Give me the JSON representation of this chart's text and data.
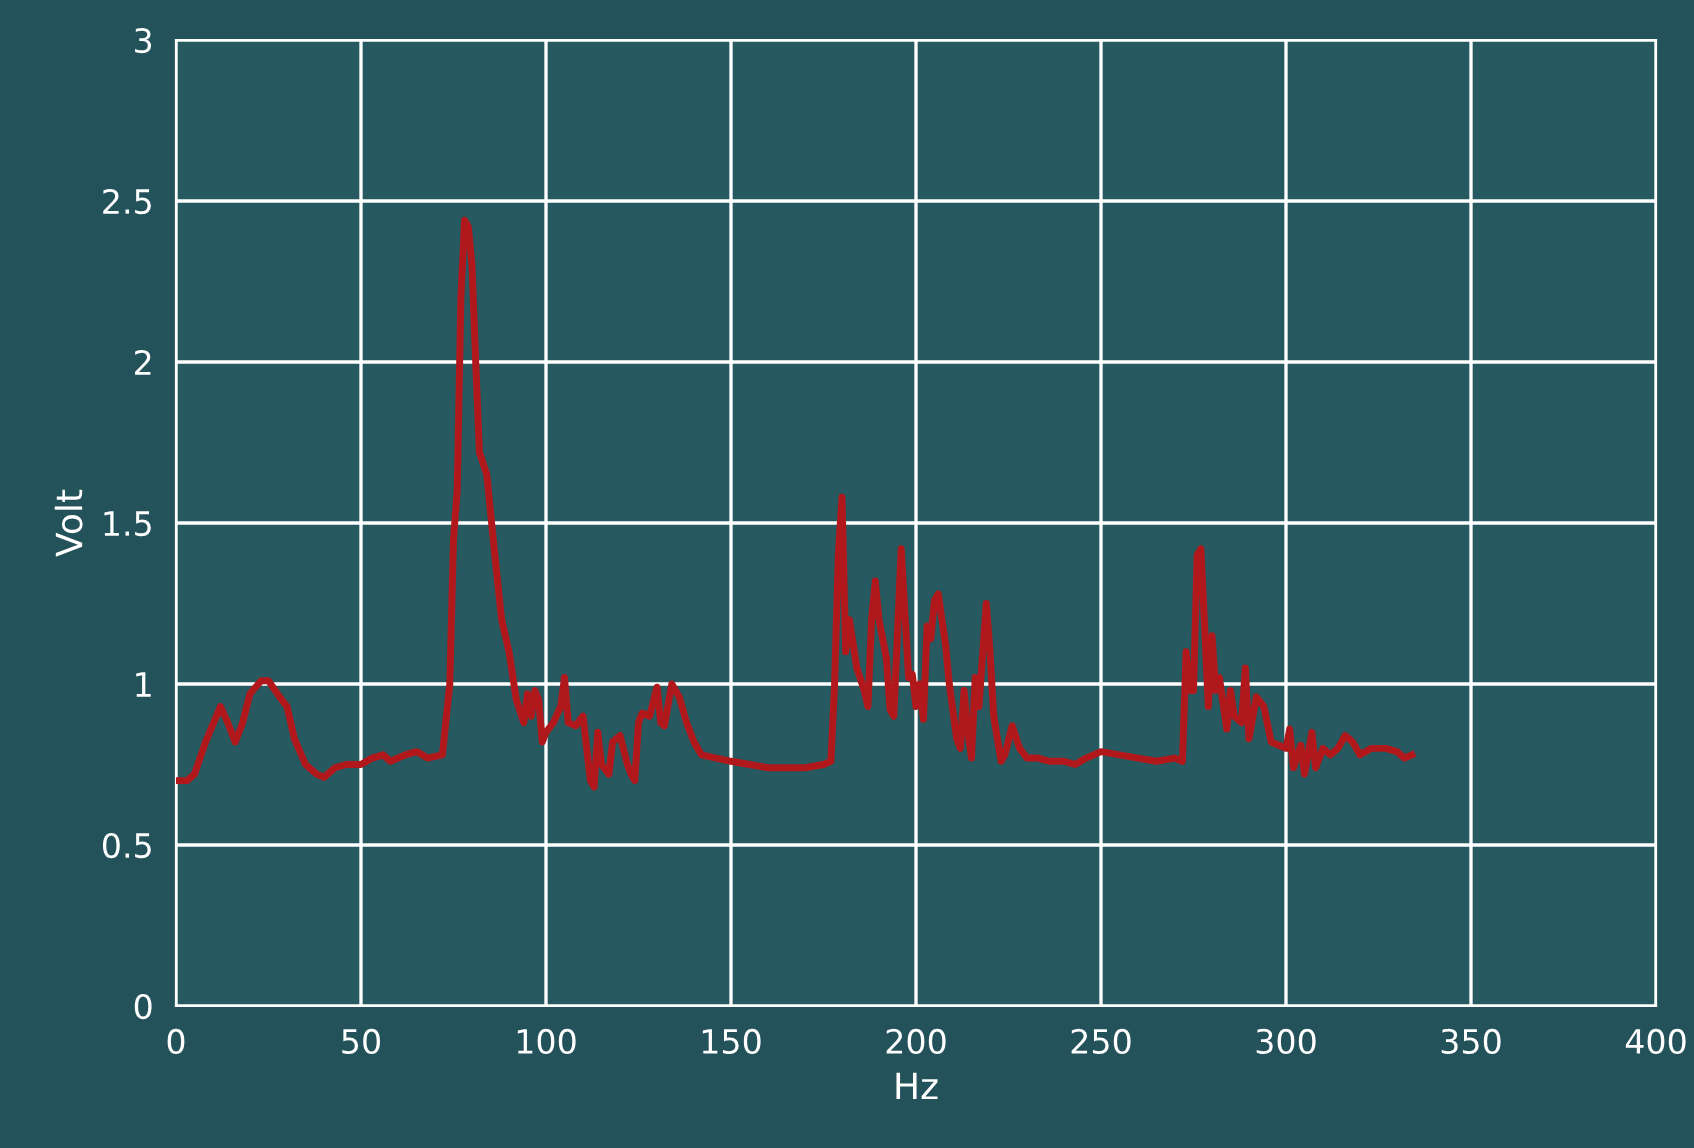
{
  "chart_data": {
    "type": "line",
    "xlabel": "Hz",
    "ylabel": "Volt",
    "xlim": [
      0,
      400
    ],
    "ylim": [
      0,
      3
    ],
    "xticks": [
      0,
      50,
      100,
      150,
      200,
      250,
      300,
      350,
      400
    ],
    "yticks": [
      0,
      0.5,
      1,
      1.5,
      2,
      2.5,
      3
    ],
    "grid": true,
    "marker": "none",
    "line_style": "solid",
    "x": [
      0,
      3,
      5,
      8,
      12,
      14,
      16,
      18,
      20,
      23,
      25,
      28,
      30,
      32,
      35,
      38,
      40,
      43,
      46,
      50,
      53,
      56,
      58,
      62,
      65,
      68,
      72,
      74,
      75,
      76,
      77,
      78,
      79,
      80,
      81,
      82,
      84,
      86,
      88,
      90,
      92,
      94,
      95,
      96,
      97,
      98,
      99,
      100,
      102,
      104,
      105,
      106,
      108,
      110,
      112,
      113,
      114,
      115,
      117,
      118,
      120,
      122,
      123,
      124,
      125,
      126,
      128,
      130,
      131,
      132,
      134,
      136,
      138,
      140,
      142,
      146,
      150,
      155,
      160,
      165,
      170,
      175,
      177,
      178,
      179,
      180,
      181,
      182,
      184,
      186,
      187,
      188,
      189,
      190,
      192,
      193,
      194,
      196,
      197,
      198,
      199,
      200,
      201,
      202,
      203,
      204,
      205,
      206,
      208,
      209,
      211,
      212,
      213,
      214,
      215,
      216,
      217,
      219,
      220,
      221,
      223,
      224,
      226,
      228,
      230,
      233,
      236,
      240,
      243,
      246,
      250,
      255,
      260,
      265,
      270,
      272,
      273,
      274,
      275,
      276,
      277,
      278,
      279,
      280,
      281,
      282,
      284,
      285,
      286,
      288,
      289,
      290,
      292,
      294,
      296,
      298,
      300,
      301,
      302,
      304,
      305,
      307,
      308,
      310,
      312,
      314,
      316,
      318,
      320,
      323,
      327,
      330,
      332,
      334
    ],
    "series": [
      {
        "color": "#b0181c",
        "values": [
          0.7,
          0.7,
          0.72,
          0.82,
          0.93,
          0.88,
          0.82,
          0.88,
          0.97,
          1.01,
          1.01,
          0.96,
          0.93,
          0.83,
          0.75,
          0.72,
          0.71,
          0.74,
          0.75,
          0.75,
          0.77,
          0.78,
          0.76,
          0.78,
          0.79,
          0.77,
          0.78,
          1.0,
          1.45,
          1.6,
          2.2,
          2.44,
          2.42,
          2.3,
          2.0,
          1.72,
          1.65,
          1.42,
          1.2,
          1.1,
          0.95,
          0.88,
          0.97,
          0.9,
          0.98,
          0.95,
          0.82,
          0.85,
          0.88,
          0.93,
          1.02,
          0.88,
          0.87,
          0.9,
          0.7,
          0.68,
          0.85,
          0.75,
          0.72,
          0.82,
          0.84,
          0.75,
          0.72,
          0.7,
          0.88,
          0.91,
          0.9,
          0.99,
          0.88,
          0.87,
          1.0,
          0.96,
          0.88,
          0.82,
          0.78,
          0.77,
          0.76,
          0.75,
          0.74,
          0.74,
          0.74,
          0.75,
          0.76,
          1.0,
          1.4,
          1.58,
          1.1,
          1.2,
          1.05,
          0.98,
          0.93,
          1.2,
          1.32,
          1.2,
          1.08,
          0.92,
          0.9,
          1.42,
          1.22,
          1.02,
          1.03,
          0.93,
          1.0,
          0.89,
          1.18,
          1.14,
          1.26,
          1.28,
          1.12,
          1.0,
          0.83,
          0.8,
          0.98,
          0.85,
          0.77,
          1.02,
          0.93,
          1.25,
          1.1,
          0.9,
          0.76,
          0.78,
          0.87,
          0.8,
          0.77,
          0.77,
          0.76,
          0.76,
          0.75,
          0.77,
          0.79,
          0.78,
          0.77,
          0.76,
          0.77,
          0.76,
          1.1,
          0.98,
          0.98,
          1.4,
          1.42,
          1.18,
          0.93,
          1.15,
          0.98,
          1.02,
          0.86,
          0.98,
          0.9,
          0.88,
          1.05,
          0.83,
          0.96,
          0.93,
          0.82,
          0.81,
          0.8,
          0.86,
          0.74,
          0.81,
          0.72,
          0.85,
          0.74,
          0.8,
          0.78,
          0.8,
          0.84,
          0.82,
          0.78,
          0.8,
          0.8,
          0.79,
          0.77,
          0.78
        ]
      }
    ]
  }
}
